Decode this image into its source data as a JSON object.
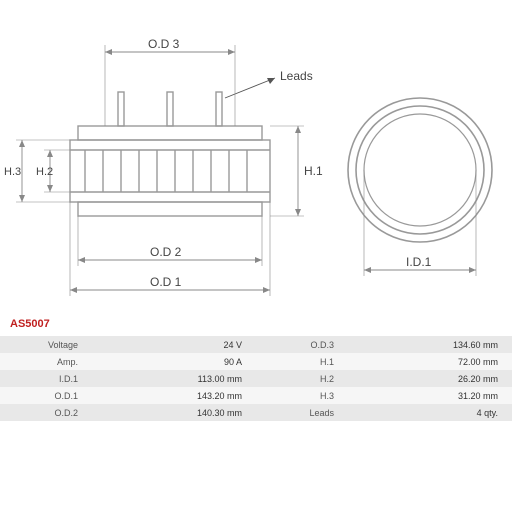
{
  "product_code": "AS5007",
  "product_code_color": "#c02020",
  "diagram": {
    "stroke": "#999999",
    "stroke_width": 1.4,
    "thin_stroke": "#888888",
    "thin_width": 0.9,
    "label_color": "#444444",
    "label_fontsize": 12,
    "labels": {
      "od3": "O.D 3",
      "od2": "O.D 2",
      "od1": "O.D 1",
      "h1": "H.1",
      "h2": "H.2",
      "h3": "H.3",
      "id1": "I.D.1",
      "leads": "Leads"
    }
  },
  "specs_left": [
    {
      "label": "Voltage",
      "value": "24 V"
    },
    {
      "label": "Amp.",
      "value": "90 A"
    },
    {
      "label": "I.D.1",
      "value": "113.00 mm"
    },
    {
      "label": "O.D.1",
      "value": "143.20 mm"
    },
    {
      "label": "O.D.2",
      "value": "140.30 mm"
    }
  ],
  "specs_right": [
    {
      "label": "O.D.3",
      "value": "134.60 mm"
    },
    {
      "label": "H.1",
      "value": "72.00 mm"
    },
    {
      "label": "H.2",
      "value": "26.20 mm"
    },
    {
      "label": "H.3",
      "value": "31.20 mm"
    },
    {
      "label": "Leads",
      "value": "4 qty."
    }
  ]
}
